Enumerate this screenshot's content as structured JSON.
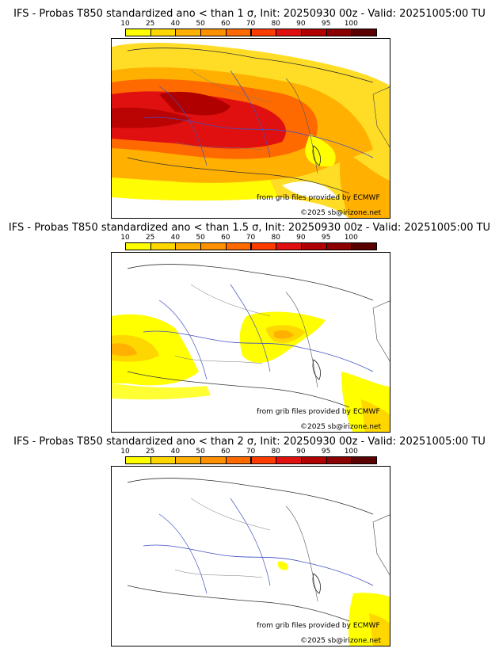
{
  "panels": [
    {
      "title": "IFS - Probas T850  standardized ano < than 1 σ, Init: 20250930 00z - Valid: 20251005:00 TU",
      "credit": "from grib files provided by ECMWF",
      "copyright": "©2025 sb@irizone.net",
      "threshold_sigma": 1,
      "max_probability_band": "80-100"
    },
    {
      "title": "IFS - Probas T850  standardized ano < than 1.5 σ, Init: 20250930 00z - Valid: 20251005:00 TU",
      "credit": "from grib files provided by ECMWF",
      "copyright": "©2025 sb@irizone.net",
      "threshold_sigma": 1.5,
      "max_probability_band": "40-60"
    },
    {
      "title": "IFS - Probas T850  standardized ano < than 2 σ, Init: 20250930 00z - Valid: 20251005:00 TU",
      "credit": "from grib files provided by ECMWF",
      "copyright": "©2025 sb@irizone.net",
      "threshold_sigma": 2,
      "max_probability_band": "10-40"
    }
  ],
  "legend": {
    "labels": [
      "10",
      "25",
      "40",
      "50",
      "60",
      "70",
      "80",
      "90",
      "95",
      "100"
    ],
    "colors": [
      "#ffff00",
      "#ffd700",
      "#ffb000",
      "#ff9000",
      "#ff6a00",
      "#ff3c00",
      "#e01010",
      "#b00000",
      "#8b0000",
      "#5a0000"
    ]
  }
}
